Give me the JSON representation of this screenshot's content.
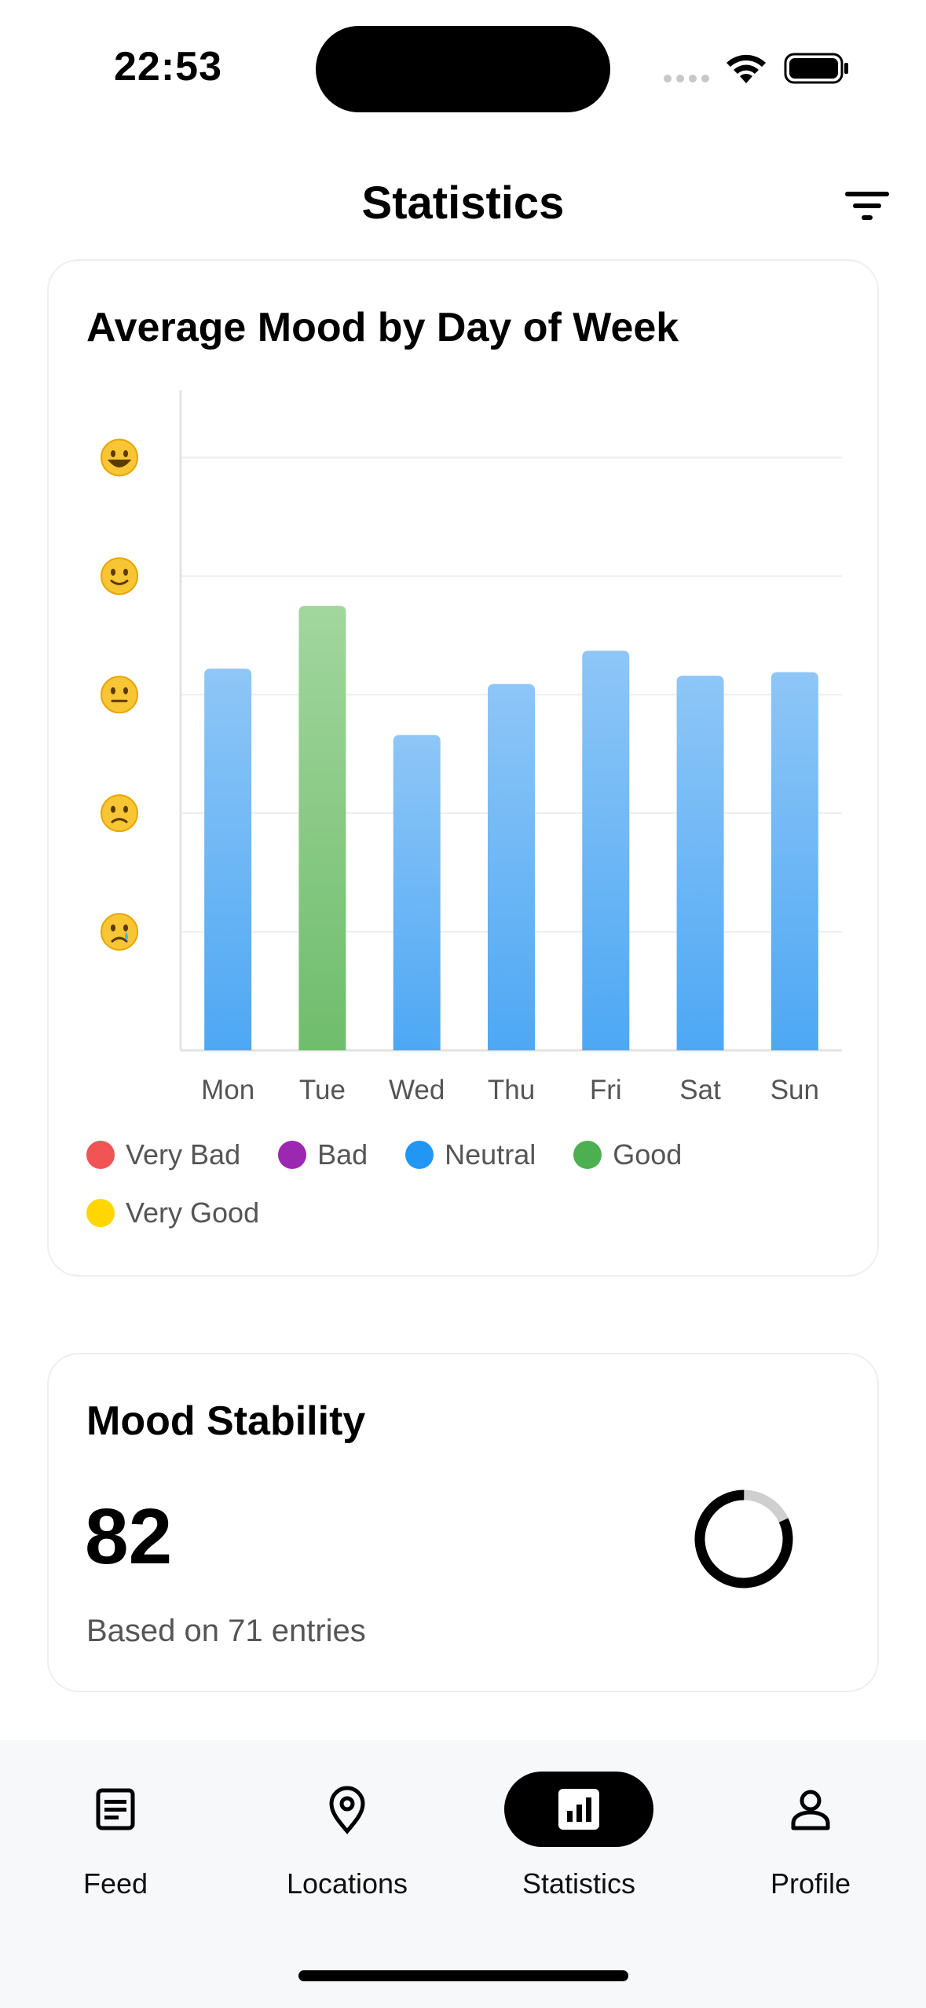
{
  "status_bar": {
    "time": "22:53"
  },
  "header": {
    "title": "Statistics"
  },
  "mood_card": {
    "title": "Average Mood by Day of Week",
    "legend": [
      {
        "label": "Very Bad",
        "color": "#f05454"
      },
      {
        "label": "Bad",
        "color": "#9c27b0"
      },
      {
        "label": "Neutral",
        "color": "#2196f3"
      },
      {
        "label": "Good",
        "color": "#4caf50"
      },
      {
        "label": "Very Good",
        "color": "#ffd600"
      }
    ]
  },
  "chart_data": {
    "type": "bar",
    "categories": [
      "Mon",
      "Tue",
      "Wed",
      "Thu",
      "Fri",
      "Sat",
      "Sun"
    ],
    "values": [
      3.22,
      3.75,
      2.66,
      3.09,
      3.37,
      3.16,
      3.19
    ],
    "bar_colors": [
      "#64b5f6",
      "#81c784",
      "#64b5f6",
      "#64b5f6",
      "#64b5f6",
      "#64b5f6",
      "#64b5f6"
    ],
    "ylim": [
      0,
      5.5
    ],
    "y_ticks": [
      {
        "value": 1,
        "icon": "crying-face-icon"
      },
      {
        "value": 2,
        "icon": "slightly-frowning-face-icon"
      },
      {
        "value": 3,
        "icon": "neutral-face-icon"
      },
      {
        "value": 4,
        "icon": "slightly-smiling-face-icon"
      },
      {
        "value": 5,
        "icon": "grinning-face-icon"
      }
    ],
    "grid": true,
    "legend_position": "bottom"
  },
  "stability_card": {
    "title": "Mood Stability",
    "value": "82",
    "subtitle": "Based on 71 entries",
    "score_fraction": 0.82
  },
  "nav": {
    "items": [
      {
        "label": "Feed",
        "icon": "feed-icon",
        "active": false
      },
      {
        "label": "Locations",
        "icon": "location-pin-icon",
        "active": false
      },
      {
        "label": "Statistics",
        "icon": "statistics-icon",
        "active": true
      },
      {
        "label": "Profile",
        "icon": "profile-icon",
        "active": false
      }
    ]
  }
}
